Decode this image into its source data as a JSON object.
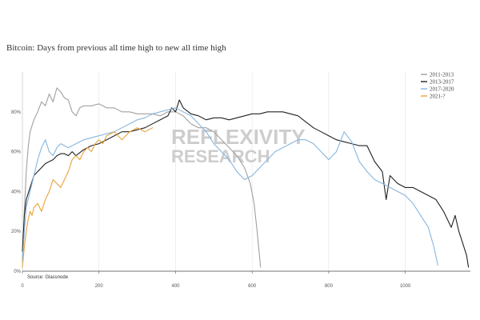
{
  "chart_data": {
    "type": "line",
    "title": "Bitcoin: Days from previous all time high to new all time high",
    "xlabel": "",
    "ylabel": "",
    "xlim": [
      0,
      1170
    ],
    "ylim": [
      0,
      1.0
    ],
    "x_ticks": [
      0,
      200,
      400,
      600,
      800,
      1000
    ],
    "x_tick_labels": [
      "0",
      "200",
      "400",
      "600",
      "800",
      "1000"
    ],
    "y_ticks": [
      0,
      0.2,
      0.4,
      0.6,
      0.8
    ],
    "y_tick_labels": [
      "0%",
      "20%",
      "40%",
      "60%",
      "80%"
    ],
    "grid": "vertical",
    "legend_position": "top-right",
    "source": "Source: Glassnode",
    "watermark_line1": "REFLEXIVITY",
    "watermark_line2": "RESEARCH",
    "series": [
      {
        "name": "2011-2013",
        "color": "#a0a0a0",
        "x": [
          0,
          5,
          10,
          15,
          20,
          30,
          40,
          50,
          60,
          70,
          80,
          90,
          100,
          110,
          120,
          130,
          140,
          150,
          160,
          180,
          200,
          220,
          240,
          260,
          280,
          300,
          320,
          340,
          360,
          380,
          400,
          420,
          440,
          460,
          480,
          500,
          520,
          540,
          560,
          580,
          595,
          605,
          612,
          618,
          622
        ],
        "y": [
          0.05,
          0.3,
          0.5,
          0.62,
          0.7,
          0.76,
          0.8,
          0.85,
          0.83,
          0.89,
          0.85,
          0.92,
          0.9,
          0.87,
          0.86,
          0.8,
          0.78,
          0.82,
          0.83,
          0.83,
          0.84,
          0.82,
          0.82,
          0.8,
          0.8,
          0.79,
          0.79,
          0.79,
          0.78,
          0.8,
          0.8,
          0.78,
          0.74,
          0.72,
          0.72,
          0.7,
          0.66,
          0.62,
          0.58,
          0.52,
          0.44,
          0.34,
          0.22,
          0.1,
          0.02
        ]
      },
      {
        "name": "2013-2017",
        "color": "#222222",
        "x": [
          0,
          5,
          10,
          20,
          30,
          40,
          50,
          60,
          70,
          80,
          90,
          100,
          110,
          120,
          130,
          140,
          160,
          180,
          200,
          220,
          240,
          260,
          280,
          300,
          320,
          340,
          360,
          380,
          390,
          400,
          410,
          420,
          440,
          460,
          480,
          500,
          520,
          540,
          560,
          580,
          600,
          620,
          640,
          660,
          680,
          700,
          720,
          740,
          760,
          780,
          800,
          820,
          840,
          860,
          880,
          900,
          920,
          940,
          950,
          960,
          980,
          1000,
          1020,
          1040,
          1060,
          1080,
          1100,
          1110,
          1120,
          1130,
          1140,
          1150,
          1160,
          1165
        ],
        "y": [
          0.1,
          0.28,
          0.36,
          0.42,
          0.48,
          0.5,
          0.52,
          0.54,
          0.55,
          0.56,
          0.58,
          0.59,
          0.59,
          0.58,
          0.6,
          0.58,
          0.61,
          0.63,
          0.64,
          0.66,
          0.68,
          0.7,
          0.7,
          0.71,
          0.72,
          0.74,
          0.76,
          0.78,
          0.82,
          0.8,
          0.86,
          0.82,
          0.79,
          0.78,
          0.76,
          0.77,
          0.77,
          0.76,
          0.77,
          0.78,
          0.79,
          0.79,
          0.8,
          0.8,
          0.8,
          0.79,
          0.78,
          0.75,
          0.72,
          0.7,
          0.68,
          0.66,
          0.65,
          0.64,
          0.63,
          0.63,
          0.55,
          0.5,
          0.36,
          0.48,
          0.44,
          0.42,
          0.42,
          0.4,
          0.38,
          0.36,
          0.3,
          0.26,
          0.22,
          0.28,
          0.2,
          0.14,
          0.08,
          0.02
        ]
      },
      {
        "name": "2017-2020",
        "color": "#87b6de",
        "x": [
          0,
          5,
          10,
          20,
          30,
          40,
          50,
          60,
          70,
          80,
          90,
          100,
          110,
          120,
          140,
          160,
          180,
          200,
          220,
          240,
          260,
          280,
          300,
          320,
          340,
          360,
          380,
          400,
          420,
          440,
          460,
          480,
          500,
          520,
          540,
          560,
          580,
          600,
          620,
          640,
          660,
          680,
          700,
          720,
          740,
          760,
          780,
          800,
          820,
          840,
          860,
          880,
          900,
          920,
          940,
          960,
          980,
          1000,
          1020,
          1040,
          1060,
          1075,
          1085
        ],
        "y": [
          0.05,
          0.2,
          0.32,
          0.4,
          0.48,
          0.56,
          0.62,
          0.66,
          0.6,
          0.58,
          0.62,
          0.64,
          0.63,
          0.62,
          0.64,
          0.66,
          0.67,
          0.68,
          0.69,
          0.7,
          0.72,
          0.74,
          0.76,
          0.77,
          0.79,
          0.8,
          0.81,
          0.82,
          0.8,
          0.78,
          0.74,
          0.7,
          0.64,
          0.6,
          0.56,
          0.5,
          0.46,
          0.48,
          0.52,
          0.56,
          0.6,
          0.62,
          0.64,
          0.66,
          0.66,
          0.64,
          0.6,
          0.56,
          0.6,
          0.7,
          0.65,
          0.55,
          0.5,
          0.46,
          0.44,
          0.42,
          0.4,
          0.38,
          0.34,
          0.28,
          0.22,
          0.12,
          0.03
        ]
      },
      {
        "name": "2021-?",
        "color": "#e8a33a",
        "x": [
          0,
          5,
          10,
          15,
          20,
          25,
          30,
          40,
          50,
          60,
          70,
          80,
          90,
          100,
          110,
          120,
          130,
          140,
          150,
          160,
          170,
          180,
          190,
          200,
          210,
          220,
          240,
          260,
          280,
          300,
          320,
          340
        ],
        "y": [
          0.02,
          0.12,
          0.2,
          0.26,
          0.3,
          0.28,
          0.32,
          0.34,
          0.3,
          0.36,
          0.4,
          0.46,
          0.44,
          0.42,
          0.46,
          0.5,
          0.56,
          0.58,
          0.56,
          0.6,
          0.62,
          0.6,
          0.64,
          0.66,
          0.64,
          0.68,
          0.7,
          0.66,
          0.7,
          0.72,
          0.7,
          0.72
        ]
      }
    ]
  }
}
